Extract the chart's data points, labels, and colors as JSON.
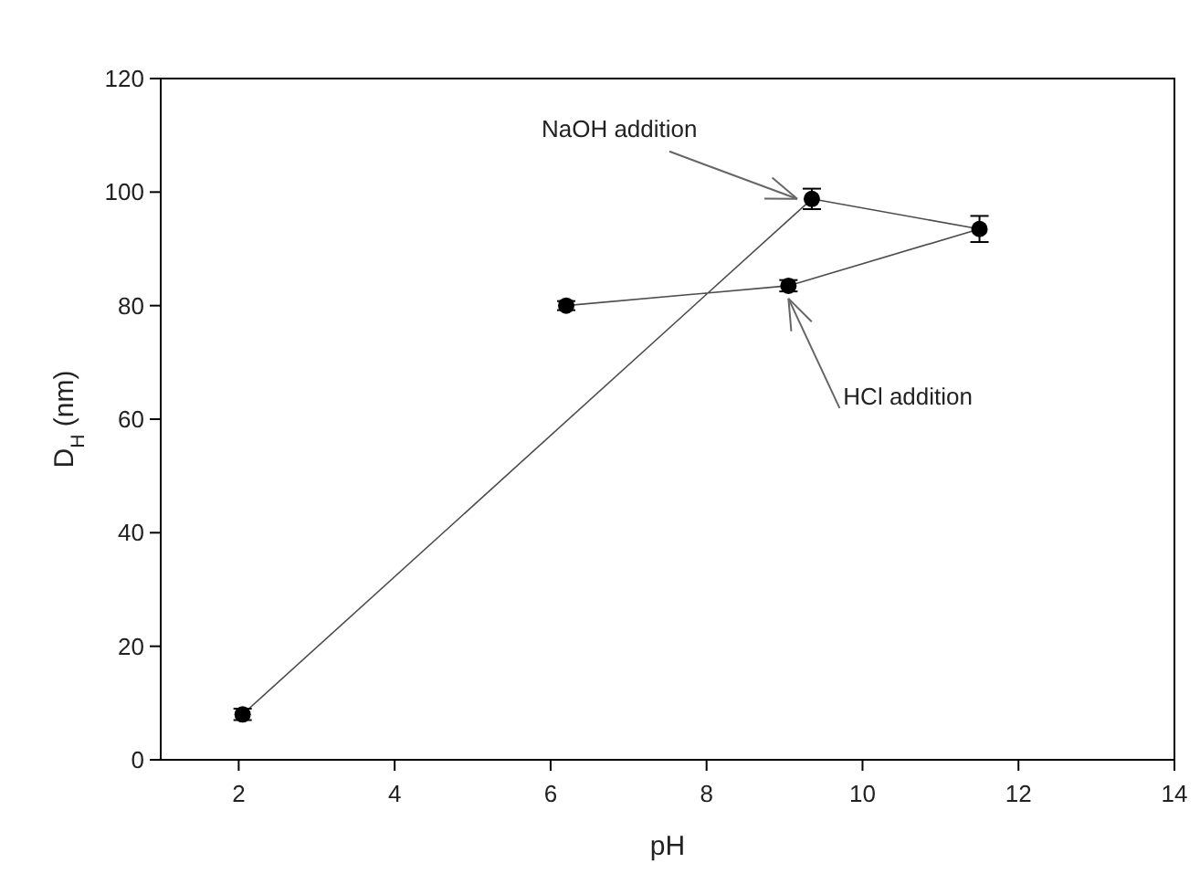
{
  "chart_data": {
    "type": "line",
    "xlabel": "pH",
    "ylabel": "D$_{H}$ (nm)",
    "xlim": [
      1,
      14
    ],
    "ylim": [
      0,
      120
    ],
    "xticks": [
      2,
      4,
      6,
      8,
      10,
      12,
      14
    ],
    "yticks": [
      0,
      20,
      40,
      60,
      80,
      100,
      120
    ],
    "marker": "circle",
    "line_style": "solid",
    "grid": false,
    "series": [
      {
        "color": "#000000",
        "x": [
          2.05,
          9.35,
          11.5,
          9.05,
          6.2
        ],
        "values": [
          8,
          98.8,
          93.5,
          83.5,
          80
        ],
        "errors": [
          1,
          1.8,
          2.3,
          1,
          0.8
        ]
      }
    ],
    "annotations": [
      {
        "text": "NaOH addition",
        "x": 9.35,
        "y": 98.8
      },
      {
        "text": "HCl addition",
        "x": 9.05,
        "y": 83.5
      }
    ]
  }
}
